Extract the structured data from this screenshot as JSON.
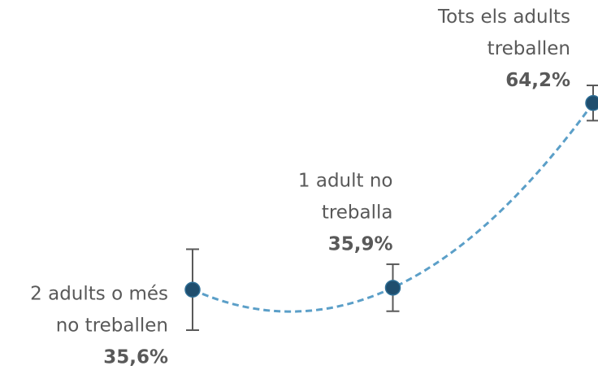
{
  "chart_data": {
    "type": "line",
    "categories": [
      [
        "2 adults o més",
        "no treballen"
      ],
      [
        "1 adult no",
        "treballa"
      ],
      [
        "Tots els adults",
        "treballen"
      ]
    ],
    "values": [
      35.6,
      35.9,
      64.2
    ],
    "value_labels": [
      "35,6%",
      "35,9%",
      "64,2%"
    ],
    "errors": [
      6.2,
      3.6,
      2.7
    ],
    "color": "#5b9fc8",
    "marker_color": "#1f4e6e",
    "error_color": "#595959",
    "line_style": "dashed"
  }
}
